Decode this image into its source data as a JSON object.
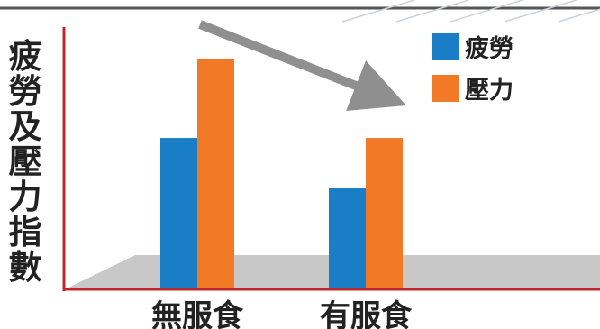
{
  "chart_data": {
    "type": "bar",
    "title": "",
    "xlabel": "",
    "ylabel": "疲勞及壓力指數",
    "categories": [
      "無服食",
      "有服食"
    ],
    "series": [
      {
        "name": "疲勞",
        "color": "#1a7ec7",
        "values": [
          54,
          36
        ]
      },
      {
        "name": "壓力",
        "color": "#f27a27",
        "values": [
          82,
          54
        ]
      }
    ],
    "ylim": [
      0,
      100
    ],
    "grid": false,
    "legend": "top-right",
    "annotation": "gray-downward-trend-arrow",
    "axis_color": "#c0262c",
    "floor_color": "#c8c8c8"
  }
}
